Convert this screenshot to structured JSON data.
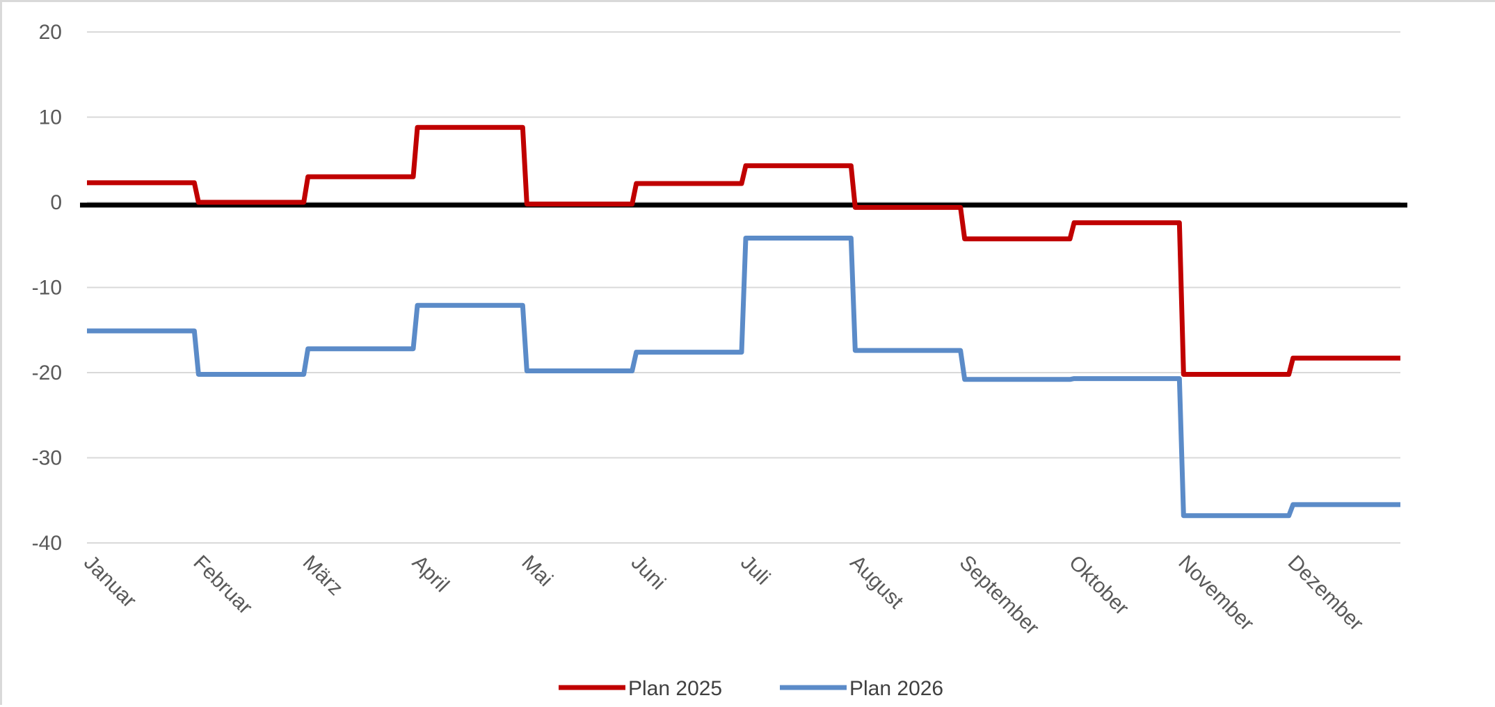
{
  "chart_data": {
    "type": "line",
    "line_style": "step",
    "categories": [
      "Januar",
      "Februar",
      "März",
      "April",
      "Mai",
      "Juni",
      "Juli",
      "August",
      "September",
      "Oktober",
      "November",
      "Dezember"
    ],
    "series": [
      {
        "name": "Plan 2025",
        "color": "#c00000",
        "values": [
          2.3,
          0.0,
          3.0,
          8.8,
          -0.2,
          2.2,
          4.3,
          -0.6,
          -4.3,
          -2.4,
          -20.2,
          -18.3
        ]
      },
      {
        "name": "Plan 2026",
        "color": "#5b8bc8",
        "values": [
          -15.1,
          -20.2,
          -17.2,
          -12.1,
          -19.8,
          -17.6,
          -4.2,
          -17.4,
          -20.8,
          -20.7,
          -36.8,
          -35.5
        ]
      }
    ],
    "ylim": [
      -40,
      20
    ],
    "yticks": [
      "20",
      "10",
      "0",
      "-10",
      "-20",
      "-30",
      "-40"
    ],
    "zero_line_color": "#000000",
    "grid": true,
    "legend_position": "bottom",
    "title": "",
    "xlabel": "",
    "ylabel": ""
  }
}
